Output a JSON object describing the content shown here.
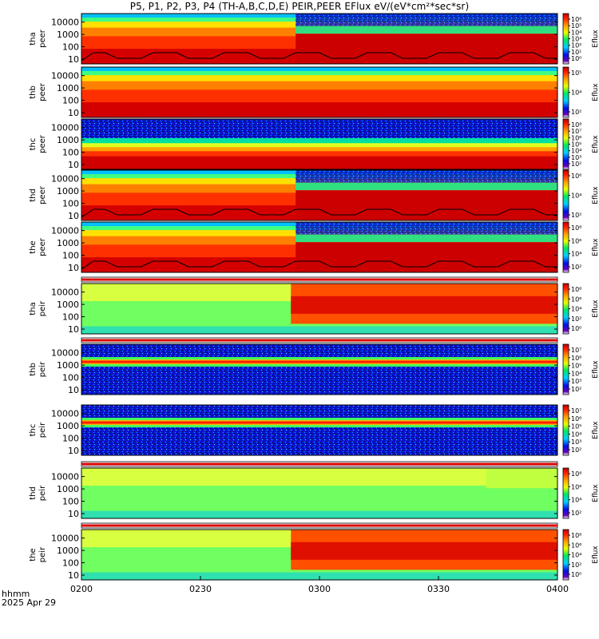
{
  "title": "P5, P1, P2, P3, P4 (TH-A,B,C,D,E) PEIR,PEER EFlux eV/(eV*cm²*sec*sr)",
  "footer": {
    "time_label": "hhmm",
    "date_label": "2025 Apr 29"
  },
  "colors": {
    "background": "#ffffff",
    "axis": "#000000",
    "gap_red": "#dc0000"
  },
  "chart_data": {
    "type": "heatmap",
    "x_axis": {
      "tick_labels": [
        "0200",
        "0230",
        "0300",
        "0330",
        "0400"
      ],
      "range": [
        "02:00",
        "04:00"
      ],
      "unit": "hhmm UT"
    },
    "y_axis_tick_labels": [
      "10",
      "100",
      "1000",
      "10000"
    ],
    "colorbar_label": "Eflux",
    "panels": [
      {
        "probe": "tha",
        "kind": "peer",
        "cbar_ticks": [
          "10⁰",
          "10¹",
          "10²",
          "10³",
          "10⁴",
          "10⁵",
          "10⁶"
        ],
        "has_contour": true,
        "gap_above": false
      },
      {
        "probe": "thb",
        "kind": "peer",
        "cbar_ticks": [
          "10²",
          "10⁴",
          "10⁵"
        ],
        "has_contour": false,
        "gap_above": false
      },
      {
        "probe": "thc",
        "kind": "peer",
        "cbar_ticks": [
          "10²",
          "10³",
          "10⁴",
          "10⁵",
          "10⁶",
          "10⁷",
          "10⁸"
        ],
        "has_contour": false,
        "gap_above": false
      },
      {
        "probe": "thd",
        "kind": "peer",
        "cbar_ticks": [
          "10²",
          "10⁴",
          "10⁶"
        ],
        "has_contour": true,
        "gap_above": false
      },
      {
        "probe": "the",
        "kind": "peer",
        "cbar_ticks": [
          "10²",
          "10⁴",
          "10⁶",
          "10⁸"
        ],
        "has_contour": true,
        "gap_above": false
      },
      {
        "probe": "tha",
        "kind": "peir",
        "cbar_ticks": [
          "10⁰",
          "10²",
          "10⁴",
          "10⁶",
          "10⁸"
        ],
        "has_contour": false,
        "gap_above": true
      },
      {
        "probe": "thb",
        "kind": "peir",
        "cbar_ticks": [
          "10²",
          "10³",
          "10⁴",
          "10⁵",
          "10⁶",
          "10⁷"
        ],
        "has_contour": false,
        "gap_above": true
      },
      {
        "probe": "thc",
        "kind": "peir",
        "cbar_ticks": [
          "10²",
          "10³",
          "10⁴",
          "10⁵",
          "10⁶",
          "10⁷"
        ],
        "has_contour": false,
        "gap_above": false
      },
      {
        "probe": "thd",
        "kind": "peir",
        "cbar_ticks": [
          "10²",
          "10⁴",
          "10⁶",
          "10⁸"
        ],
        "has_contour": false,
        "gap_above": true
      },
      {
        "probe": "the",
        "kind": "peir",
        "cbar_ticks": [
          "10⁰",
          "10²",
          "10⁴",
          "10⁶",
          "10⁸"
        ],
        "has_contour": false,
        "gap_above": true
      }
    ]
  }
}
